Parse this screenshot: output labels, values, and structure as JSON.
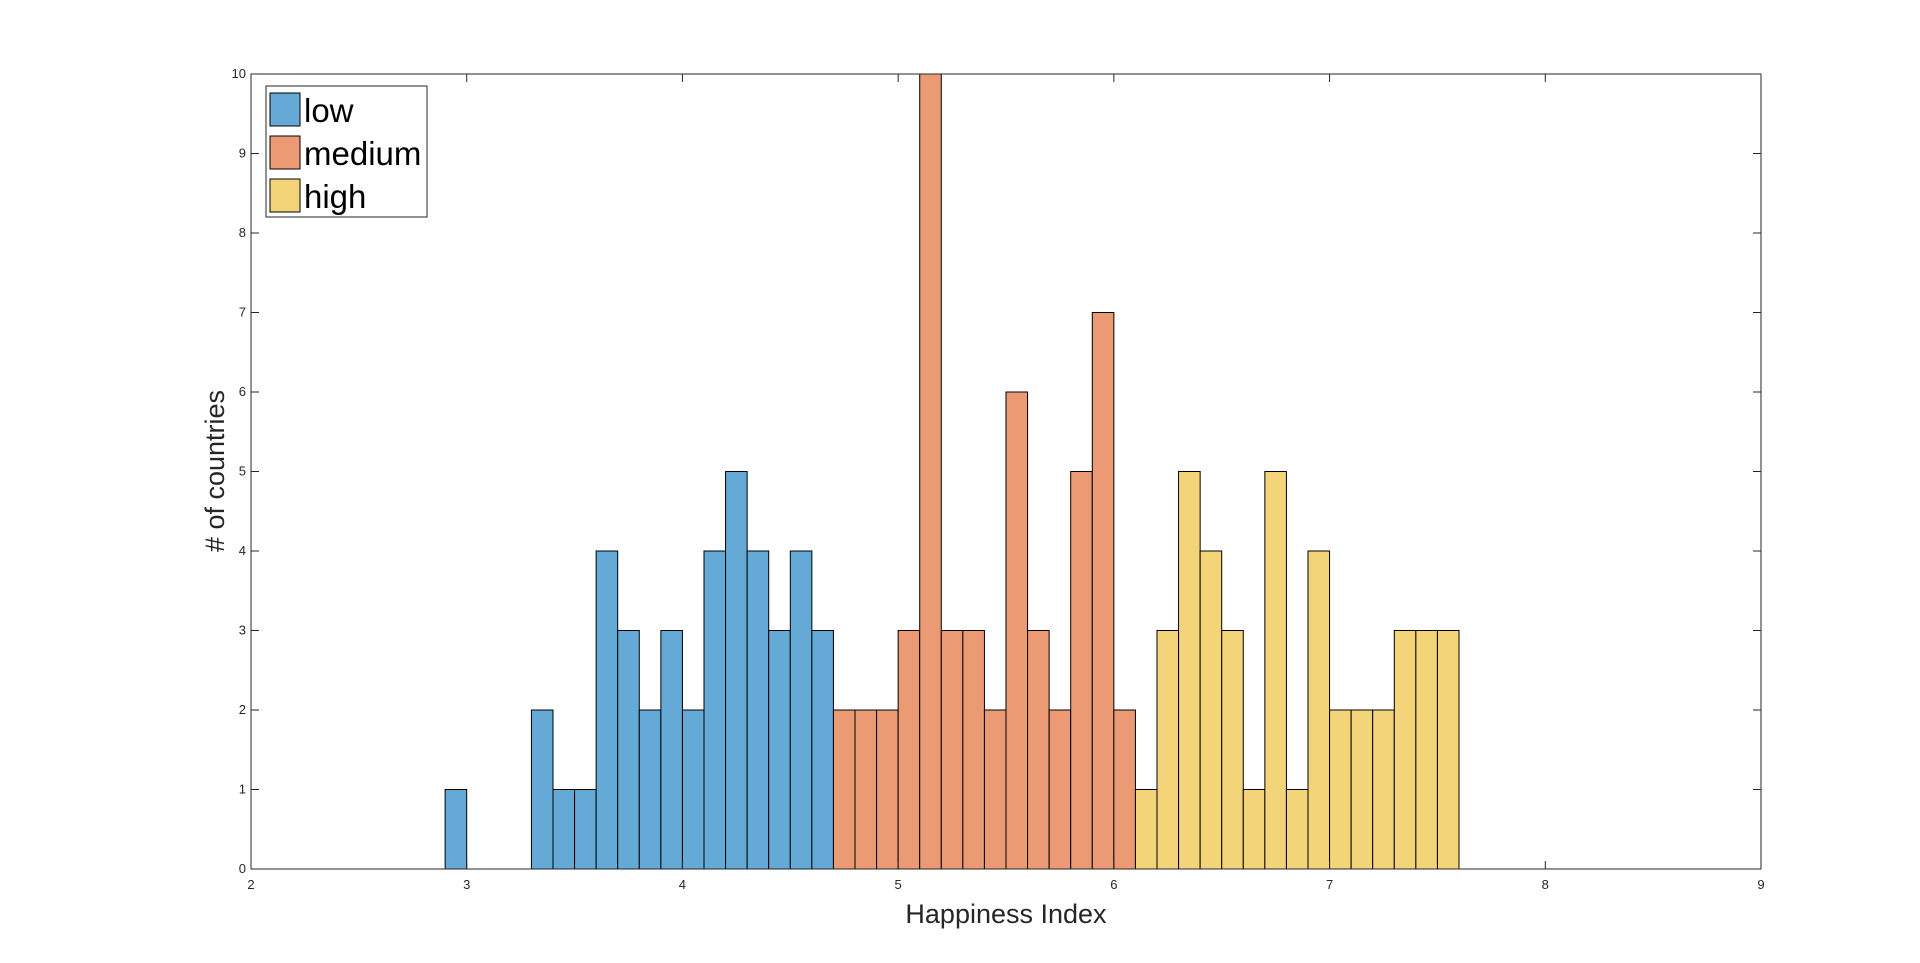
{
  "chart_data": {
    "type": "bar",
    "title": "",
    "xlabel": "Happiness Index",
    "ylabel": "# of countries",
    "xlim": [
      2,
      9
    ],
    "ylim": [
      0,
      10
    ],
    "xticks": [
      "2",
      "3",
      "4",
      "5",
      "6",
      "7",
      "8",
      "9"
    ],
    "yticks": [
      "0",
      "1",
      "2",
      "3",
      "4",
      "5",
      "6",
      "7",
      "8",
      "9",
      "10"
    ],
    "bin_width": 0.1,
    "grid": false,
    "legend_position": "top-left",
    "series": [
      {
        "name": "low",
        "color": "#65A9D7",
        "bin_starts": [
          2.9,
          3.3,
          3.4,
          3.5,
          3.6,
          3.7,
          3.8,
          3.9,
          4.0,
          4.1,
          4.2,
          4.3,
          4.4,
          4.5,
          4.6
        ],
        "values": [
          1,
          2,
          1,
          1,
          4,
          3,
          2,
          3,
          2,
          4,
          5,
          4,
          3,
          4,
          3
        ]
      },
      {
        "name": "medium",
        "color": "#EC9A74",
        "bin_starts": [
          4.7,
          4.8,
          4.9,
          5.0,
          5.1,
          5.2,
          5.3,
          5.4,
          5.5,
          5.6,
          5.7,
          5.8,
          5.9,
          6.0
        ],
        "values": [
          2,
          2,
          2,
          3,
          10,
          3,
          3,
          2,
          6,
          3,
          2,
          5,
          7,
          2
        ]
      },
      {
        "name": "high",
        "color": "#F4D479",
        "bin_starts": [
          6.1,
          6.2,
          6.3,
          6.4,
          6.5,
          6.6,
          6.7,
          6.8,
          6.9,
          7.0,
          7.1,
          7.2,
          7.3,
          7.4,
          7.5
        ],
        "values": [
          1,
          3,
          5,
          4,
          3,
          1,
          5,
          1,
          4,
          2,
          2,
          2,
          3,
          3,
          3
        ]
      }
    ]
  }
}
